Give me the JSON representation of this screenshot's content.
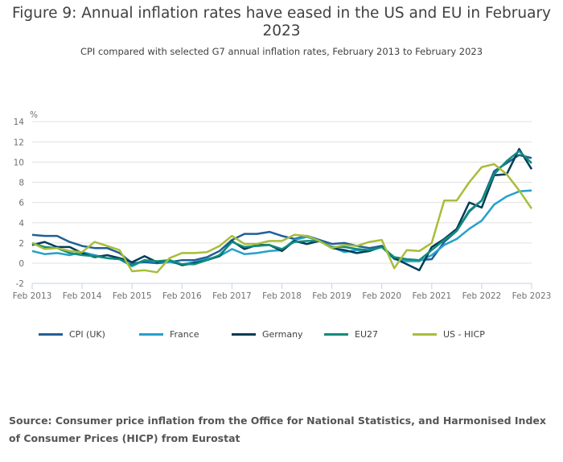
{
  "chart_data": {
    "type": "line",
    "title": "Figure 9: Annual inflation rates have eased in the US and EU in February 2023",
    "subtitle": "CPI compared with selected G7 annual inflation rates, February 2013 to February 2023",
    "ylabel": "%",
    "xlabel": "",
    "ylim": [
      -2,
      14
    ],
    "yticks": [
      "14",
      "12",
      "10",
      "8",
      "6",
      "4",
      "2",
      "0",
      "-2"
    ],
    "ytick_values": [
      14,
      12,
      10,
      8,
      6,
      4,
      2,
      0,
      -2
    ],
    "xticks": [
      "Feb 2013",
      "Feb 2014",
      "Feb 2015",
      "Feb 2016",
      "Feb 2017",
      "Feb 2018",
      "Feb 2019",
      "Feb 2020",
      "Feb 2021",
      "Feb 2022",
      "Feb 2023"
    ],
    "x_note": "values quarterly: Feb, May, Aug, Nov from Feb 2013 to Feb 2023",
    "grid": true,
    "legend_position": "bottom",
    "series": [
      {
        "name": "CPI (UK)",
        "color": "#206095",
        "values": [
          2.8,
          2.7,
          2.7,
          2.1,
          1.7,
          1.5,
          1.5,
          1.0,
          0.0,
          0.1,
          0.0,
          0.1,
          0.3,
          0.3,
          0.6,
          1.2,
          2.3,
          2.9,
          2.9,
          3.1,
          2.7,
          2.4,
          2.7,
          2.3,
          1.9,
          2.0,
          1.7,
          1.5,
          1.7,
          0.5,
          0.2,
          0.3,
          0.4,
          2.1,
          3.2,
          5.1,
          6.2,
          9.1,
          9.9,
          10.7,
          10.4
        ]
      },
      {
        "name": "France",
        "color": "#27a0cc",
        "values": [
          1.2,
          0.9,
          1.0,
          0.8,
          1.1,
          0.8,
          0.5,
          0.4,
          -0.3,
          0.3,
          0.1,
          0.1,
          -0.1,
          0.1,
          0.4,
          0.7,
          1.4,
          0.9,
          1.0,
          1.2,
          1.3,
          2.3,
          2.6,
          2.2,
          1.6,
          1.1,
          1.3,
          1.2,
          1.6,
          0.4,
          0.2,
          0.2,
          0.8,
          1.8,
          2.4,
          3.4,
          4.2,
          5.8,
          6.6,
          7.1,
          7.2
        ]
      },
      {
        "name": "Germany",
        "color": "#003c57",
        "values": [
          1.8,
          2.1,
          1.6,
          1.6,
          1.0,
          0.6,
          0.8,
          0.5,
          0.1,
          0.7,
          0.1,
          0.3,
          -0.2,
          0.0,
          0.3,
          0.7,
          2.2,
          1.4,
          1.8,
          1.8,
          1.2,
          2.2,
          1.9,
          2.2,
          1.5,
          1.3,
          1.0,
          1.2,
          1.7,
          0.5,
          -0.1,
          -0.7,
          1.6,
          2.4,
          3.4,
          6.0,
          5.5,
          8.7,
          8.8,
          11.3,
          9.3
        ]
      },
      {
        "name": "EU27",
        "color": "#118c7b",
        "values": [
          2.0,
          1.6,
          1.5,
          1.0,
          0.8,
          0.7,
          0.5,
          0.4,
          -0.2,
          0.3,
          0.2,
          0.3,
          -0.1,
          -0.1,
          0.3,
          0.8,
          2.1,
          1.6,
          1.7,
          1.8,
          1.4,
          2.1,
          2.2,
          2.2,
          1.6,
          1.6,
          1.4,
          1.3,
          1.6,
          0.6,
          0.4,
          0.3,
          1.3,
          2.3,
          3.2,
          5.2,
          6.2,
          8.8,
          10.1,
          11.1,
          9.9
        ]
      },
      {
        "name": "US - HICP",
        "color": "#a8bd3a",
        "values": [
          2.0,
          1.4,
          1.5,
          1.2,
          1.1,
          2.1,
          1.7,
          1.3,
          -0.8,
          -0.7,
          -0.9,
          0.5,
          1.0,
          1.0,
          1.1,
          1.7,
          2.7,
          1.9,
          1.9,
          2.2,
          2.2,
          2.8,
          2.7,
          2.2,
          1.5,
          1.8,
          1.7,
          2.1,
          2.3,
          -0.5,
          1.3,
          1.2,
          2.0,
          6.2,
          6.2,
          8.0,
          9.5,
          9.8,
          8.8,
          7.2,
          5.4
        ]
      }
    ]
  },
  "source": "Source: Consumer price inflation from the Office for National Statistics, and Harmonised Index of Consumer Prices (HICP) from Eurostat"
}
